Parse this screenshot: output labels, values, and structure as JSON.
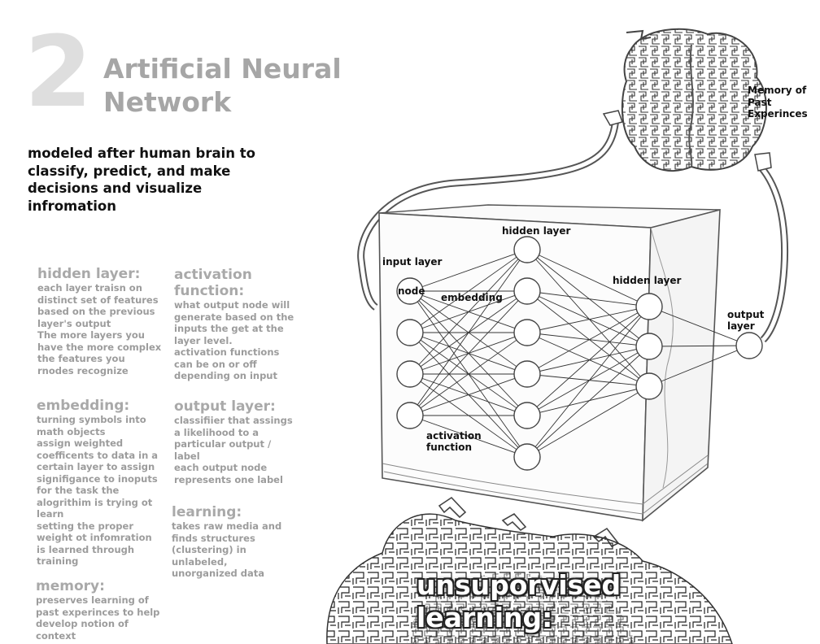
{
  "header": {
    "number": "2",
    "title": "Artificial Neural\nNetwork",
    "subtitle": "modeled after human brain to classify, predict, and make decisions and visualize infromation"
  },
  "terms": {
    "hidden_layer": {
      "heading": "hidden layer:",
      "body": "each layer traisn on\ndistinct set of features\nbased on the previous\nlayer's output\nThe more layers you\nhave the more complex\nthe features you\nrnodes recognize"
    },
    "activation_function": {
      "heading": "activation\nfunction:",
      "body": "what output node will\ngenerate based on the\ninputs the get at the\nlayer level.\nactivation functions\ncan be on or off\ndepending on input"
    },
    "embedding": {
      "heading": "embedding:",
      "body": "turning symbols into\nmath objects\nassign weighted\ncoefficents to data in a\ncertain layer to assign\nsignifigance to inoputs\nfor the task the\nalogrithim is trying ot\nlearn\nsetting the proper\nweight ot infomration\nis learned through\ntraining"
    },
    "output_layer": {
      "heading": "output layer:",
      "body": "classifiier that assings\na likelihood to a\nparticular output /\nlabel\neach output node\nrepresents one label"
    },
    "learning": {
      "heading": "learning:",
      "body": "takes raw media and\nfinds structures\n(clustering)  in\nunlabeled,\nunorganized data"
    },
    "memory": {
      "heading": "memory:",
      "body": "preserves learning of\npast experinces to help\ndevelop notion of\ncontext"
    }
  },
  "diagram": {
    "input_layer": "input layer",
    "node": "node",
    "embedding": "embedding",
    "hidden_layer_1": "hidden layer",
    "hidden_layer_2": "hidden layer",
    "output_layer": "output\nlayer",
    "activation_function": "activation\nfunction",
    "brain_label": "Memory of\nPast\nExperinces",
    "layer_sizes": [
      4,
      6,
      3,
      1
    ]
  },
  "bottom_caption": "unsuporvised\nlearning:"
}
